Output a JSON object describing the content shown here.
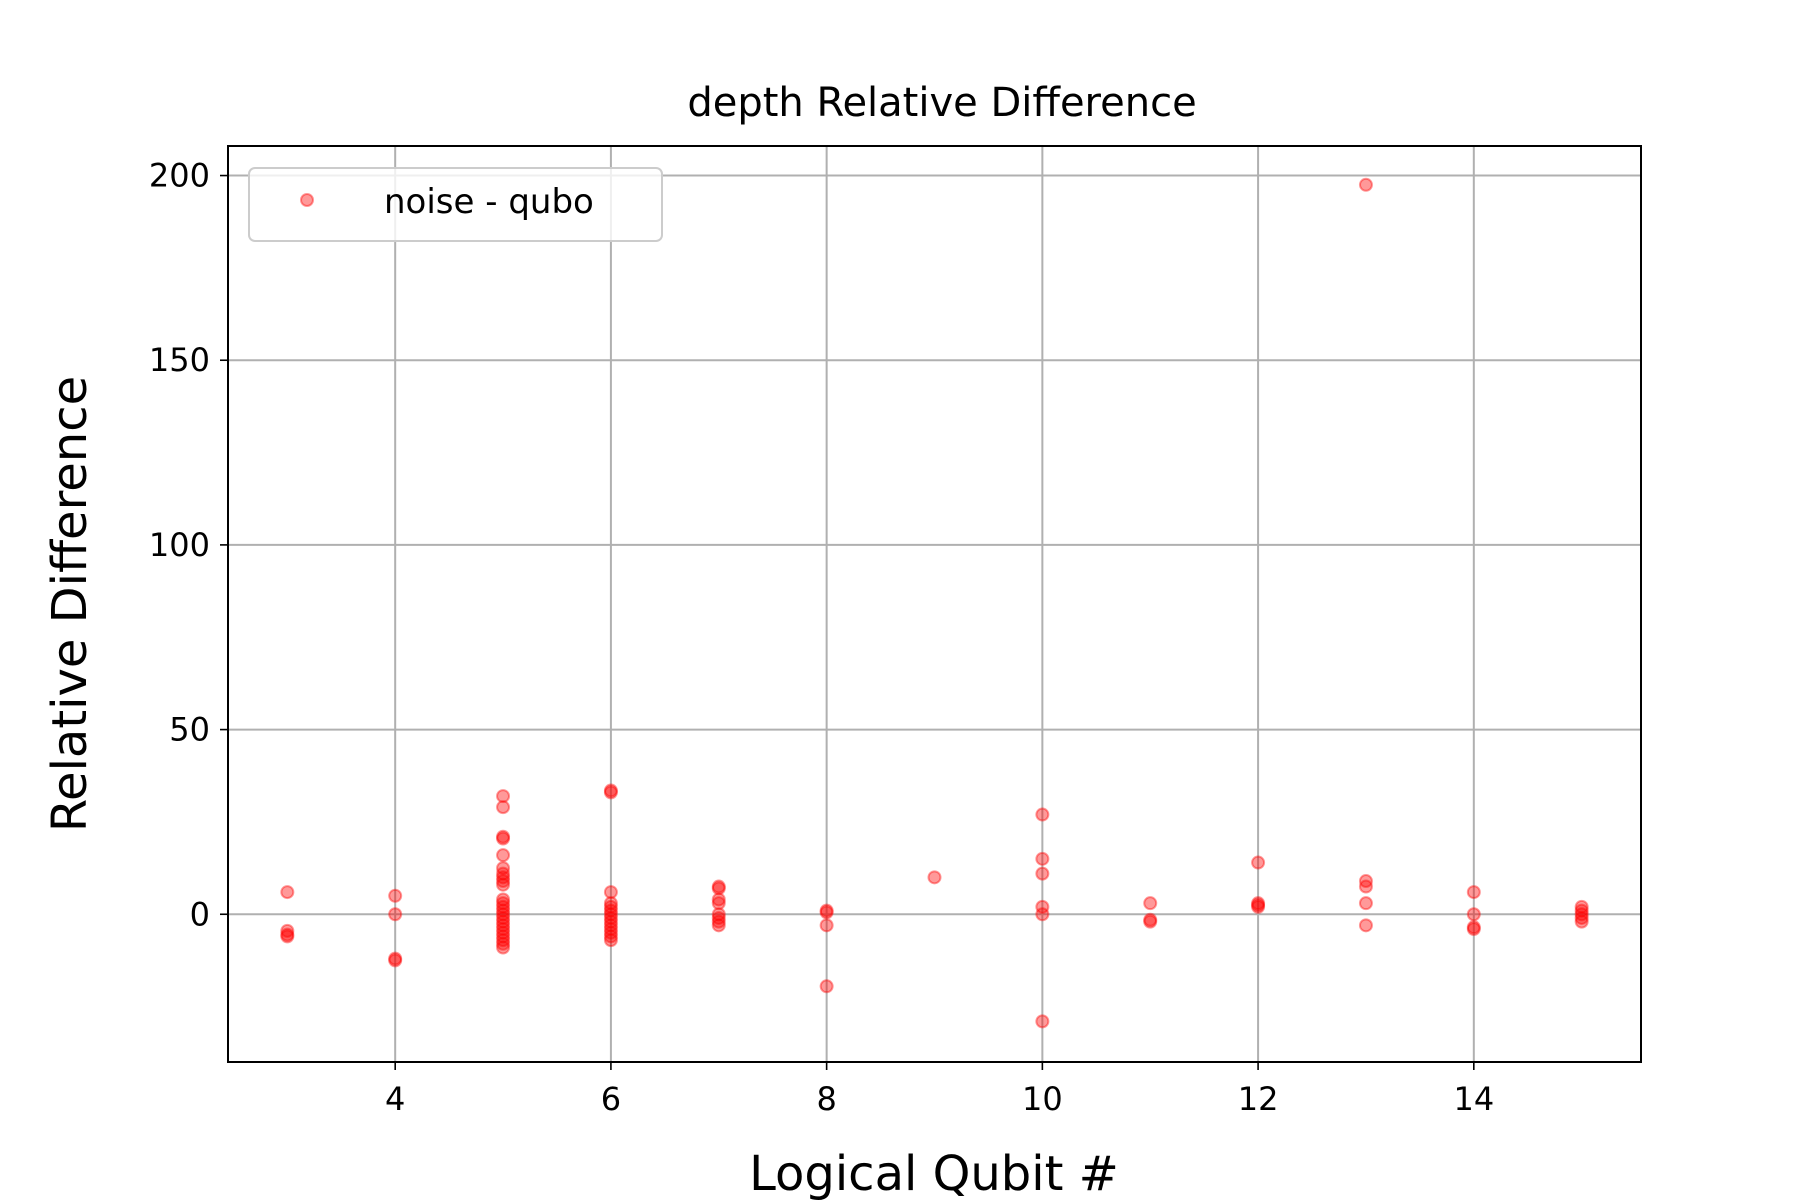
{
  "chart_data": {
    "type": "scatter",
    "title": "depth Relative Difference",
    "xlabel": "Logical Qubit #",
    "ylabel": "Relative Difference",
    "xlim": [
      2.45,
      15.55
    ],
    "ylim": [
      -40,
      208
    ],
    "xticks": [
      4,
      6,
      8,
      10,
      12,
      14
    ],
    "yticks": [
      0,
      50,
      100,
      150,
      200
    ],
    "xtick_labels": [
      "4",
      "6",
      "8",
      "10",
      "12",
      "14"
    ],
    "ytick_labels": [
      "0",
      "50",
      "100",
      "150",
      "200"
    ],
    "grid": true,
    "legend": {
      "position": "upper-left",
      "entries": [
        "noise - qubo"
      ]
    },
    "series": [
      {
        "name": "noise - qubo",
        "color": "#ff0000",
        "marker": "circle",
        "alpha": 0.4,
        "points": [
          {
            "x": 3,
            "y": 6
          },
          {
            "x": 3,
            "y": -4.5
          },
          {
            "x": 3,
            "y": -5.5
          },
          {
            "x": 3,
            "y": -6
          },
          {
            "x": 4,
            "y": 5
          },
          {
            "x": 4,
            "y": 0
          },
          {
            "x": 4,
            "y": -12
          },
          {
            "x": 4,
            "y": -12.5
          },
          {
            "x": 5,
            "y": 32
          },
          {
            "x": 5,
            "y": 29
          },
          {
            "x": 5,
            "y": 21
          },
          {
            "x": 5,
            "y": 20.5
          },
          {
            "x": 5,
            "y": 16
          },
          {
            "x": 5,
            "y": 12.5
          },
          {
            "x": 5,
            "y": 11
          },
          {
            "x": 5,
            "y": 10
          },
          {
            "x": 5,
            "y": 9
          },
          {
            "x": 5,
            "y": 8
          },
          {
            "x": 5,
            "y": 4
          },
          {
            "x": 5,
            "y": 3
          },
          {
            "x": 5,
            "y": 2
          },
          {
            "x": 5,
            "y": 1
          },
          {
            "x": 5,
            "y": 0
          },
          {
            "x": 5,
            "y": -1
          },
          {
            "x": 5,
            "y": -2
          },
          {
            "x": 5,
            "y": -3
          },
          {
            "x": 5,
            "y": -4
          },
          {
            "x": 5,
            "y": -5
          },
          {
            "x": 5,
            "y": -6
          },
          {
            "x": 5,
            "y": -7
          },
          {
            "x": 5,
            "y": -8
          },
          {
            "x": 5,
            "y": -9
          },
          {
            "x": 6,
            "y": 33.5
          },
          {
            "x": 6,
            "y": 33
          },
          {
            "x": 6,
            "y": 6
          },
          {
            "x": 6,
            "y": 3
          },
          {
            "x": 6,
            "y": 2
          },
          {
            "x": 6,
            "y": 1
          },
          {
            "x": 6,
            "y": 0
          },
          {
            "x": 6,
            "y": -1
          },
          {
            "x": 6,
            "y": -2
          },
          {
            "x": 6,
            "y": -3
          },
          {
            "x": 6,
            "y": -4
          },
          {
            "x": 6,
            "y": -5
          },
          {
            "x": 6,
            "y": -6
          },
          {
            "x": 6,
            "y": -7
          },
          {
            "x": 7,
            "y": 7.5
          },
          {
            "x": 7,
            "y": 7
          },
          {
            "x": 7,
            "y": 4
          },
          {
            "x": 7,
            "y": 3
          },
          {
            "x": 7,
            "y": 0
          },
          {
            "x": 7,
            "y": -1
          },
          {
            "x": 7,
            "y": -2
          },
          {
            "x": 7,
            "y": -3
          },
          {
            "x": 8,
            "y": 1
          },
          {
            "x": 8,
            "y": 0.5
          },
          {
            "x": 8,
            "y": -3
          },
          {
            "x": 8,
            "y": -19.5
          },
          {
            "x": 9,
            "y": 10
          },
          {
            "x": 10,
            "y": 27
          },
          {
            "x": 10,
            "y": 15
          },
          {
            "x": 10,
            "y": 11
          },
          {
            "x": 10,
            "y": 2
          },
          {
            "x": 10,
            "y": 0
          },
          {
            "x": 10,
            "y": -29
          },
          {
            "x": 11,
            "y": 3
          },
          {
            "x": 11,
            "y": -1.5
          },
          {
            "x": 11,
            "y": -2
          },
          {
            "x": 12,
            "y": 14
          },
          {
            "x": 12,
            "y": 3
          },
          {
            "x": 12,
            "y": 2.5
          },
          {
            "x": 12,
            "y": 2
          },
          {
            "x": 13,
            "y": 197.5
          },
          {
            "x": 13,
            "y": 9
          },
          {
            "x": 13,
            "y": 7.5
          },
          {
            "x": 13,
            "y": 3
          },
          {
            "x": 13,
            "y": -3
          },
          {
            "x": 14,
            "y": 6
          },
          {
            "x": 14,
            "y": 0
          },
          {
            "x": 14,
            "y": -3.5
          },
          {
            "x": 14,
            "y": -4
          },
          {
            "x": 15,
            "y": 2
          },
          {
            "x": 15,
            "y": 1
          },
          {
            "x": 15,
            "y": 0
          },
          {
            "x": 15,
            "y": -1
          },
          {
            "x": 15,
            "y": -2
          }
        ]
      }
    ]
  }
}
